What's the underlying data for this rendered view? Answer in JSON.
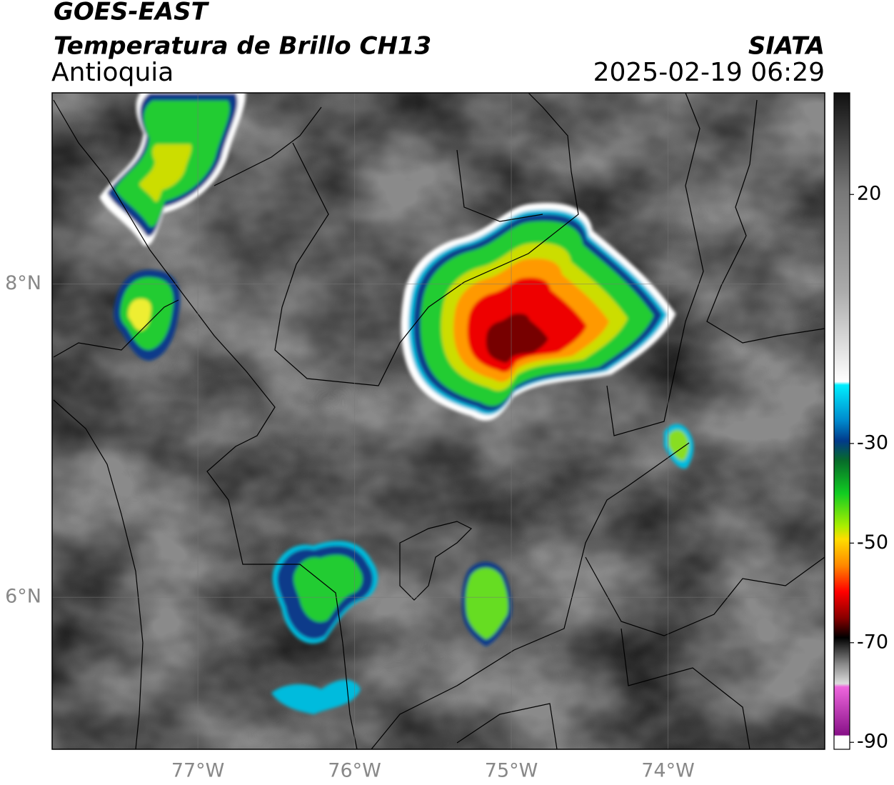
{
  "header": {
    "satellite": "GOES-EAST",
    "product": "Temperatura de Brillo CH13",
    "region": "Antioquia",
    "source": "SIATA",
    "datetime": "2025-02-19 06:29"
  },
  "map": {
    "lon_range": [
      -77.93,
      -73.0
    ],
    "lat_range": [
      5.03,
      9.22
    ],
    "lon_ticks": [
      {
        "value": -77,
        "label": "77°W"
      },
      {
        "value": -76,
        "label": "76°W"
      },
      {
        "value": -75,
        "label": "75°W"
      },
      {
        "value": -74,
        "label": "74°W"
      }
    ],
    "lat_ticks": [
      {
        "value": 8,
        "label": "8°N"
      },
      {
        "value": 6,
        "label": "6°N"
      }
    ],
    "grid": true
  },
  "colorbar": {
    "range": [
      -91.4,
      40.4
    ],
    "ticks": [
      20,
      -30,
      -50,
      -70,
      -90
    ]
  }
}
